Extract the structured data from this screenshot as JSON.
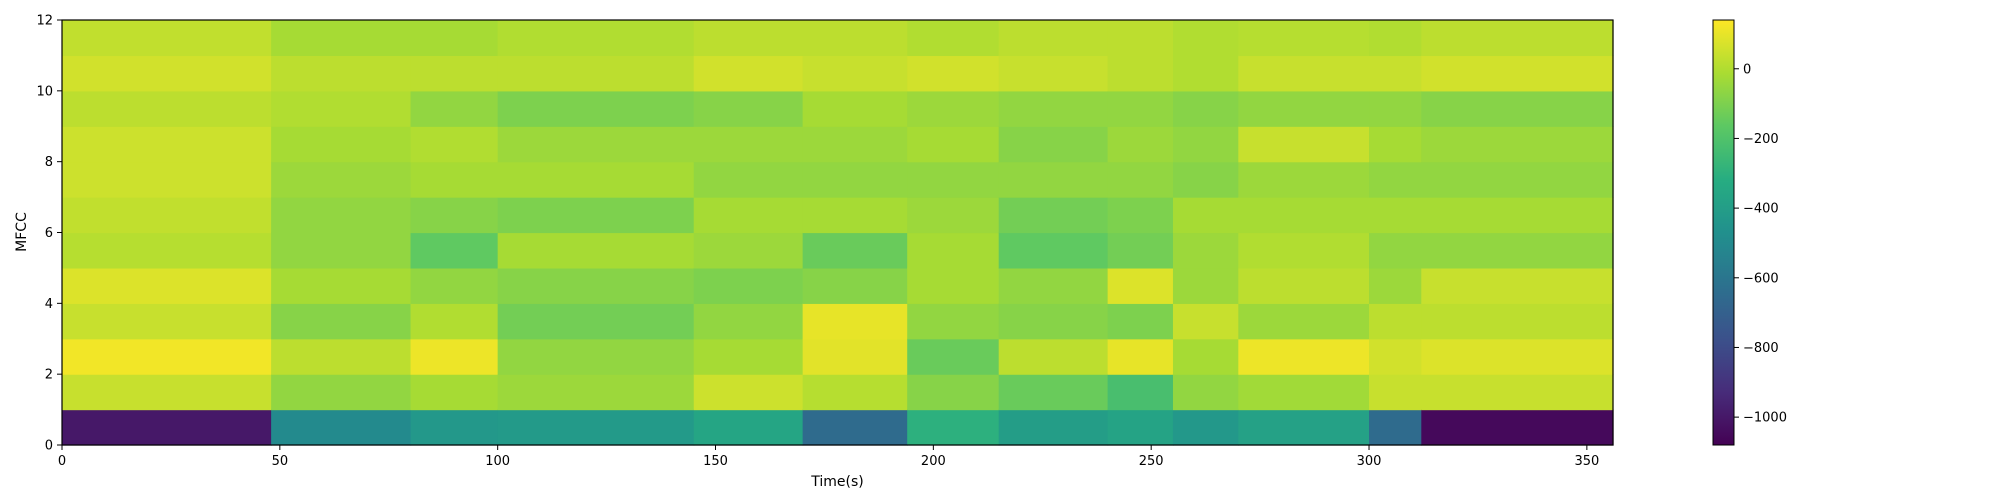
{
  "chart_data": {
    "type": "heatmap",
    "xlabel": "Time(s)",
    "ylabel": "MFCC",
    "xlim": [
      0,
      356
    ],
    "ylim": [
      0,
      12
    ],
    "x_ticks": [
      0,
      50,
      100,
      150,
      200,
      250,
      300,
      350
    ],
    "x_tick_labels": [
      "0",
      "50",
      "100",
      "150",
      "200",
      "250",
      "300",
      "350"
    ],
    "y_ticks": [
      0,
      2,
      4,
      6,
      8,
      10,
      12
    ],
    "y_tick_labels": [
      "0",
      "2",
      "4",
      "6",
      "8",
      "10",
      "12"
    ],
    "colormap": "viridis",
    "color_range": [
      -1080,
      140
    ],
    "colorbar_ticks": [
      0,
      -200,
      -400,
      -600,
      -800,
      -1000
    ],
    "colorbar_tick_labels": [
      "0",
      "−200",
      "−400",
      "−600",
      "−800",
      "−1000"
    ],
    "coefficients": 12,
    "segments": [
      {
        "start": 0,
        "end": 48,
        "values": [
          -1000,
          40,
          120,
          40,
          80,
          10,
          30,
          50,
          50,
          20,
          60,
          30
        ]
      },
      {
        "start": 48,
        "end": 80,
        "values": [
          -500,
          -60,
          20,
          -80,
          -20,
          -60,
          -60,
          -40,
          -20,
          0,
          20,
          -20
        ]
      },
      {
        "start": 80,
        "end": 100,
        "values": [
          -430,
          -20,
          110,
          0,
          -60,
          -160,
          -80,
          -20,
          0,
          -60,
          20,
          -20
        ]
      },
      {
        "start": 100,
        "end": 145,
        "values": [
          -420,
          -40,
          -60,
          -120,
          -80,
          -20,
          -100,
          -20,
          -40,
          -100,
          20,
          0
        ]
      },
      {
        "start": 145,
        "end": 170,
        "values": [
          -360,
          50,
          -20,
          -60,
          -100,
          -40,
          -20,
          -60,
          -40,
          -80,
          60,
          20
        ]
      },
      {
        "start": 170,
        "end": 194,
        "values": [
          -650,
          10,
          90,
          100,
          -80,
          -140,
          -20,
          -60,
          -40,
          -20,
          40,
          20
        ]
      },
      {
        "start": 194,
        "end": 215,
        "values": [
          -300,
          -80,
          -140,
          -60,
          -20,
          -20,
          -40,
          -60,
          -20,
          -40,
          60,
          0
        ]
      },
      {
        "start": 215,
        "end": 240,
        "values": [
          -400,
          -140,
          20,
          -80,
          -60,
          -160,
          -120,
          -60,
          -80,
          -60,
          40,
          20
        ]
      },
      {
        "start": 240,
        "end": 255,
        "values": [
          -370,
          -220,
          100,
          -100,
          80,
          -120,
          -100,
          -60,
          -40,
          -60,
          20,
          20
        ]
      },
      {
        "start": 255,
        "end": 270,
        "values": [
          -430,
          -60,
          -20,
          40,
          -40,
          -40,
          -20,
          -80,
          -60,
          -80,
          0,
          0
        ]
      },
      {
        "start": 270,
        "end": 300,
        "values": [
          -380,
          -30,
          110,
          -40,
          20,
          0,
          -20,
          -40,
          40,
          -60,
          40,
          10
        ]
      },
      {
        "start": 300,
        "end": 312,
        "values": [
          -650,
          40,
          60,
          20,
          -40,
          -60,
          -20,
          -60,
          -20,
          -60,
          40,
          0
        ]
      },
      {
        "start": 312,
        "end": 356,
        "values": [
          -1050,
          40,
          80,
          20,
          40,
          -60,
          -20,
          -60,
          -40,
          -80,
          60,
          20
        ]
      }
    ]
  }
}
